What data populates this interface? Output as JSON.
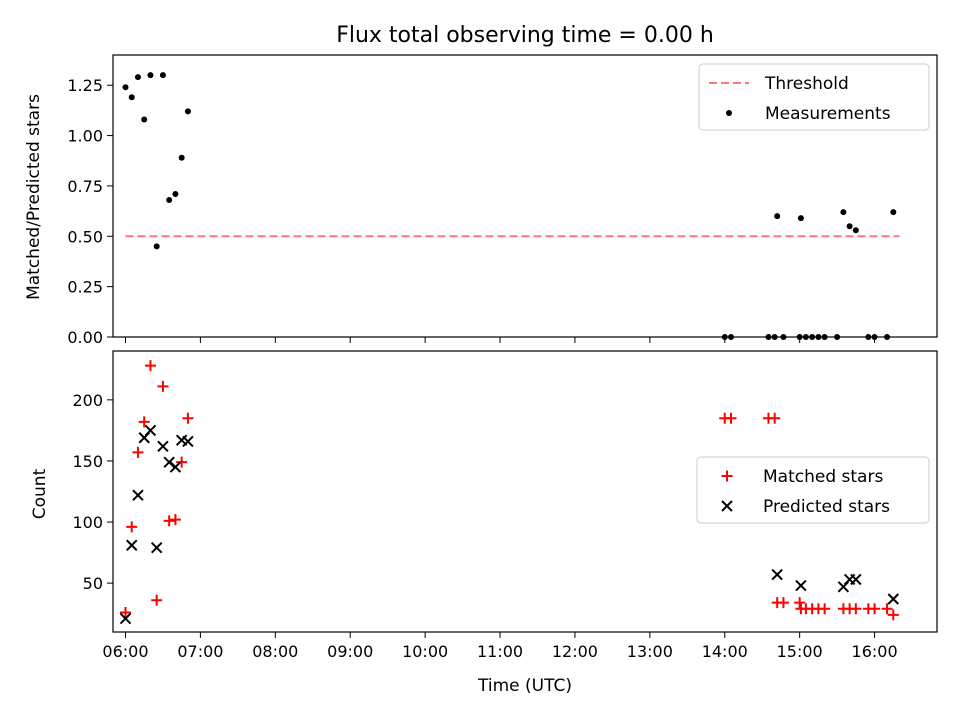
{
  "title": "Flux total observing time = 0.00 h",
  "xlabel": "Time (UTC)",
  "xticks": [
    "06:00",
    "07:00",
    "08:00",
    "09:00",
    "10:00",
    "11:00",
    "12:00",
    "13:00",
    "14:00",
    "15:00",
    "16:00"
  ],
  "chart_data": [
    {
      "type": "scatter",
      "ylabel": "Matched/Predicted stars",
      "xlim": [
        "05:50",
        "16:50"
      ],
      "ylim": [
        0,
        1.4
      ],
      "yticks": [
        "0.00",
        "0.25",
        "0.50",
        "0.75",
        "1.00",
        "1.25"
      ],
      "legend": "top-right",
      "series": [
        {
          "name": "Threshold",
          "kind": "line",
          "color": "#ff7777",
          "points": [
            [
              "06:00",
              0.5
            ],
            [
              "16:20",
              0.5
            ]
          ]
        },
        {
          "name": "Measurements",
          "kind": "dot",
          "color": "#000000",
          "points": [
            [
              "06:00",
              1.24
            ],
            [
              "06:05",
              1.19
            ],
            [
              "06:10",
              1.29
            ],
            [
              "06:15",
              1.08
            ],
            [
              "06:20",
              1.3
            ],
            [
              "06:25",
              0.45
            ],
            [
              "06:30",
              1.3
            ],
            [
              "06:35",
              0.68
            ],
            [
              "06:40",
              0.71
            ],
            [
              "06:45",
              0.89
            ],
            [
              "06:50",
              1.12
            ],
            [
              "14:00",
              0.0
            ],
            [
              "14:05",
              0.0
            ],
            [
              "14:35",
              0.0
            ],
            [
              "14:40",
              0.0
            ],
            [
              "14:42",
              0.6
            ],
            [
              "14:47",
              0.0
            ],
            [
              "15:00",
              0.0
            ],
            [
              "15:01",
              0.59
            ],
            [
              "15:05",
              0.0
            ],
            [
              "15:10",
              0.0
            ],
            [
              "15:15",
              0.0
            ],
            [
              "15:20",
              0.0
            ],
            [
              "15:30",
              0.0
            ],
            [
              "15:35",
              0.62
            ],
            [
              "15:40",
              0.55
            ],
            [
              "15:45",
              0.53
            ],
            [
              "15:55",
              0.0
            ],
            [
              "16:00",
              0.0
            ],
            [
              "16:10",
              0.0
            ],
            [
              "16:15",
              0.62
            ]
          ]
        }
      ]
    },
    {
      "type": "scatter",
      "ylabel": "Count",
      "xlim": [
        "05:50",
        "16:50"
      ],
      "ylim": [
        10,
        240
      ],
      "yticks": [
        "50",
        "100",
        "150",
        "200"
      ],
      "legend": "center-right",
      "series": [
        {
          "name": "Matched stars",
          "marker": "+",
          "color": "#ff0000",
          "points": [
            [
              "06:00",
              26
            ],
            [
              "06:05",
              96
            ],
            [
              "06:10",
              157
            ],
            [
              "06:15",
              182
            ],
            [
              "06:20",
              228
            ],
            [
              "06:25",
              36
            ],
            [
              "06:30",
              211
            ],
            [
              "06:35",
              101
            ],
            [
              "06:40",
              102
            ],
            [
              "06:45",
              149
            ],
            [
              "06:50",
              185
            ],
            [
              "14:00",
              185
            ],
            [
              "14:05",
              185
            ],
            [
              "14:35",
              185
            ],
            [
              "14:40",
              185
            ],
            [
              "14:42",
              34
            ],
            [
              "14:47",
              34
            ],
            [
              "15:00",
              34
            ],
            [
              "15:01",
              29
            ],
            [
              "15:05",
              29
            ],
            [
              "15:10",
              29
            ],
            [
              "15:15",
              29
            ],
            [
              "15:20",
              29
            ],
            [
              "15:35",
              29
            ],
            [
              "15:40",
              29
            ],
            [
              "15:45",
              29
            ],
            [
              "15:55",
              29
            ],
            [
              "16:00",
              29
            ],
            [
              "16:10",
              29
            ],
            [
              "16:15",
              24
            ]
          ]
        },
        {
          "name": "Predicted stars",
          "marker": "x",
          "color": "#000000",
          "points": [
            [
              "06:00",
              21
            ],
            [
              "06:05",
              81
            ],
            [
              "06:10",
              122
            ],
            [
              "06:15",
              169
            ],
            [
              "06:20",
              175
            ],
            [
              "06:25",
              79
            ],
            [
              "06:30",
              162
            ],
            [
              "06:35",
              149
            ],
            [
              "06:40",
              145
            ],
            [
              "06:45",
              167
            ],
            [
              "06:50",
              166
            ],
            [
              "14:42",
              57
            ],
            [
              "15:01",
              48
            ],
            [
              "15:35",
              47
            ],
            [
              "15:40",
              53
            ],
            [
              "15:45",
              53
            ],
            [
              "16:15",
              37
            ]
          ]
        }
      ]
    }
  ]
}
